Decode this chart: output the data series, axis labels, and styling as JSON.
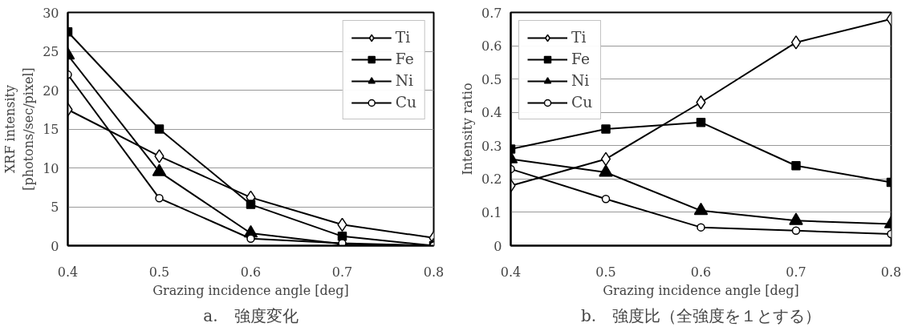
{
  "chart_data": [
    {
      "type": "line",
      "title": "a.　強度変化",
      "xlabel": "Grazing incidence angle [deg]",
      "ylabel": "XRF intensity\n[photons/sec/pixel]",
      "x": [
        0.4,
        0.5,
        0.6,
        0.7,
        0.8
      ],
      "xlim": [
        0.4,
        0.8
      ],
      "xticks": [
        0.4,
        0.5,
        0.6,
        0.7,
        0.8
      ],
      "ylim": [
        0,
        30
      ],
      "yticks": [
        0,
        5,
        10,
        15,
        20,
        25,
        30
      ],
      "grid": "y",
      "legend": "top right",
      "series": [
        {
          "name": "Ti",
          "color": "#000000",
          "marker": "diamond",
          "values": [
            17.5,
            11.5,
            6.2,
            2.7,
            1.0
          ]
        },
        {
          "name": "Fe",
          "color": "#000000",
          "marker": "square",
          "values": [
            27.5,
            15,
            5.3,
            1.2,
            0
          ]
        },
        {
          "name": "Ni",
          "color": "#000000",
          "marker": "triangle",
          "values": [
            24.5,
            9.5,
            1.6,
            0.2,
            0
          ]
        },
        {
          "name": "Cu",
          "color": "#000000",
          "marker": "circle",
          "values": [
            22,
            6.1,
            0.9,
            0.3,
            0
          ]
        }
      ]
    },
    {
      "type": "line",
      "title": "b.　強度比（全強度を１とする）",
      "xlabel": "Grazing incidence angle [deg]",
      "ylabel": "Intensity ratio",
      "x": [
        0.4,
        0.5,
        0.6,
        0.7,
        0.8
      ],
      "xlim": [
        0.4,
        0.8
      ],
      "xticks": [
        0.4,
        0.5,
        0.6,
        0.7,
        0.8
      ],
      "ylim": [
        0,
        0.7
      ],
      "yticks": [
        0,
        0.1,
        0.2,
        0.3,
        0.4,
        0.5,
        0.6,
        0.7
      ],
      "grid": "y",
      "legend": "top left",
      "series": [
        {
          "name": "Ti",
          "color": "#000000",
          "marker": "diamond",
          "values": [
            0.18,
            0.26,
            0.43,
            0.61,
            0.68
          ]
        },
        {
          "name": "Fe",
          "color": "#000000",
          "marker": "square",
          "values": [
            0.29,
            0.35,
            0.37,
            0.24,
            0.19
          ]
        },
        {
          "name": "Ni",
          "color": "#000000",
          "marker": "triangle",
          "values": [
            0.26,
            0.22,
            0.105,
            0.075,
            0.065
          ]
        },
        {
          "name": "Cu",
          "color": "#000000",
          "marker": "circle",
          "values": [
            0.23,
            0.14,
            0.055,
            0.045,
            0.035
          ]
        }
      ]
    }
  ]
}
